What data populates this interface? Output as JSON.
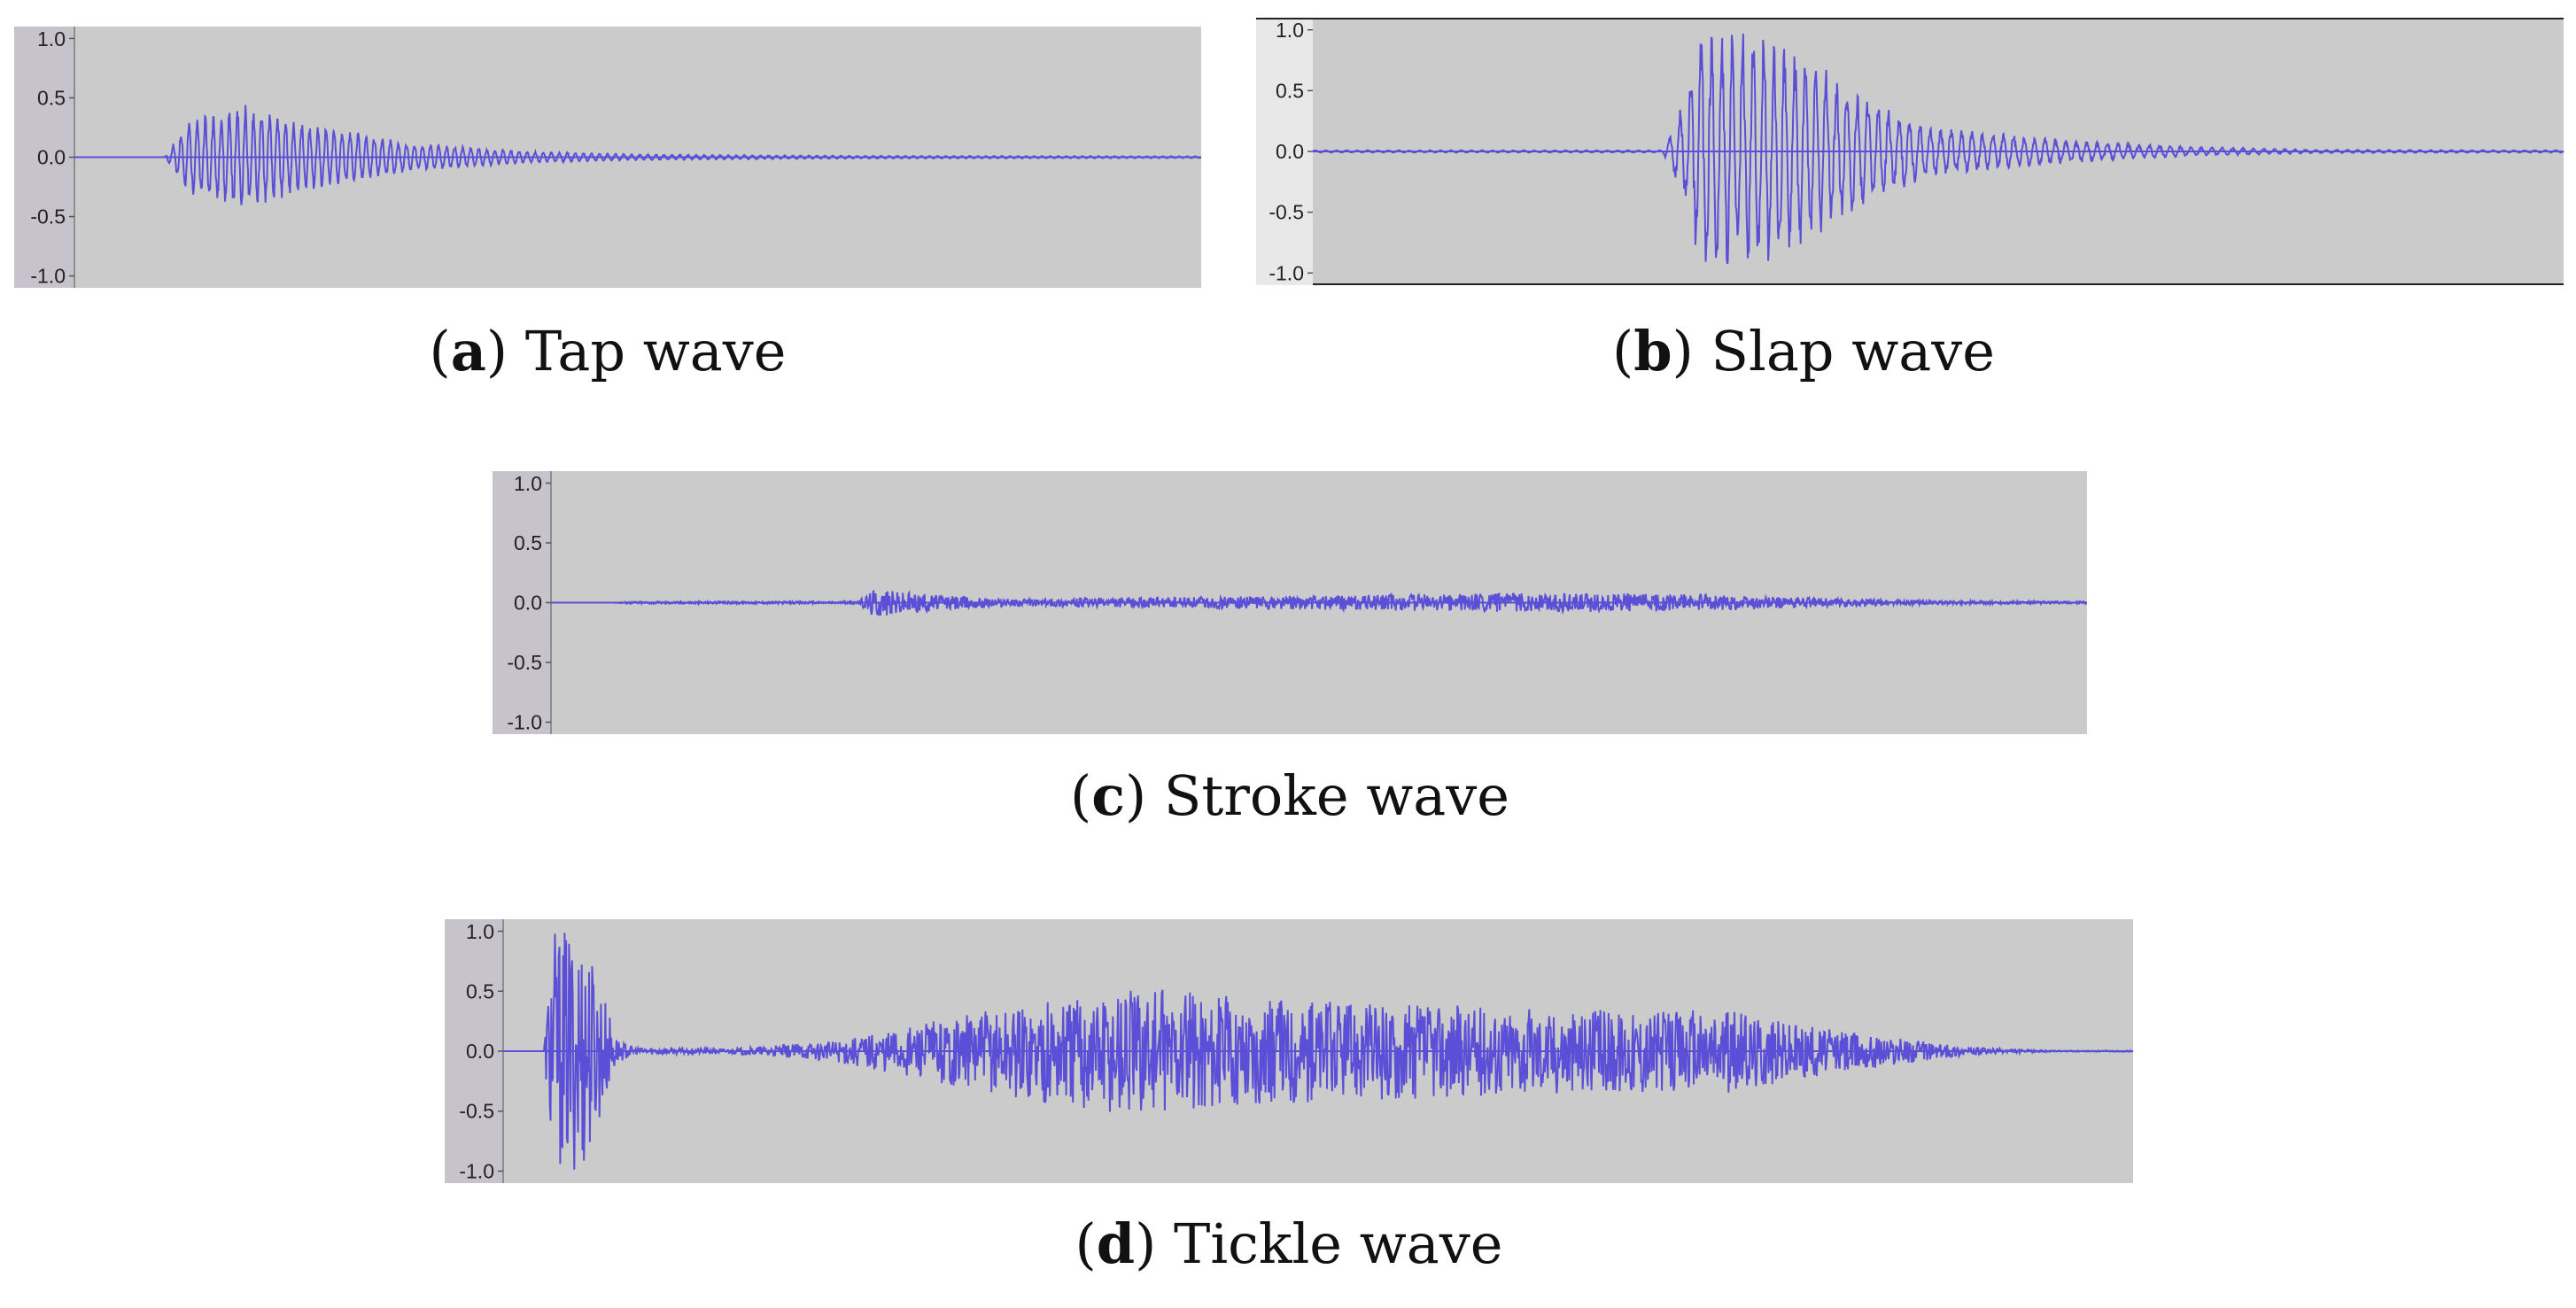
{
  "chart_data": [
    {
      "type": "line",
      "label": "a",
      "caption": "Tap wave",
      "ytick_labels": [
        "1.0",
        "0.5",
        "0.0",
        "-0.5",
        "-1.0"
      ],
      "ylim": [
        -1.1,
        1.1
      ],
      "xlim": [
        0,
        1
      ],
      "line_color": "#5a4fd6",
      "envelope": [
        [
          0.0,
          0
        ],
        [
          0.08,
          0
        ],
        [
          0.1,
          0.3
        ],
        [
          0.15,
          0.45
        ],
        [
          0.2,
          0.3
        ],
        [
          0.3,
          0.12
        ],
        [
          0.4,
          0.05
        ],
        [
          0.5,
          0.025
        ],
        [
          0.7,
          0.012
        ],
        [
          1.0,
          0.008
        ]
      ]
    },
    {
      "type": "line",
      "label": "b",
      "caption": "Slap wave",
      "ytick_labels": [
        "1.0",
        "0.5",
        "0.0",
        "-0.5",
        "-1.0"
      ],
      "ylim": [
        -1.1,
        1.1
      ],
      "xlim": [
        0,
        1
      ],
      "line_color": "#5a4fd6",
      "envelope": [
        [
          0.0,
          0.01
        ],
        [
          0.28,
          0.01
        ],
        [
          0.3,
          0.5
        ],
        [
          0.31,
          1.0
        ],
        [
          0.36,
          1.0
        ],
        [
          0.4,
          0.75
        ],
        [
          0.45,
          0.4
        ],
        [
          0.5,
          0.2
        ],
        [
          0.6,
          0.1
        ],
        [
          0.7,
          0.04
        ],
        [
          0.8,
          0.015
        ],
        [
          1.0,
          0.01
        ]
      ]
    },
    {
      "type": "line",
      "label": "c",
      "caption": "Stroke wave",
      "ytick_labels": [
        "1.0",
        "0.5",
        "0.0",
        "-0.5",
        "-1.0"
      ],
      "ylim": [
        -1.1,
        1.1
      ],
      "xlim": [
        0,
        1
      ],
      "line_color": "#5a4fd6",
      "envelope": [
        [
          0.0,
          0
        ],
        [
          0.04,
          0
        ],
        [
          0.05,
          0.01
        ],
        [
          0.2,
          0.01
        ],
        [
          0.21,
          0.12
        ],
        [
          0.25,
          0.07
        ],
        [
          0.3,
          0.03
        ],
        [
          0.5,
          0.06
        ],
        [
          0.65,
          0.08
        ],
        [
          0.75,
          0.07
        ],
        [
          0.82,
          0.04
        ],
        [
          0.9,
          0.015
        ],
        [
          1.0,
          0.01
        ]
      ]
    },
    {
      "type": "line",
      "label": "d",
      "caption": "Tickle wave",
      "ytick_labels": [
        "1.0",
        "0.5",
        "0.0",
        "-0.5",
        "-1.0"
      ],
      "ylim": [
        -1.1,
        1.1
      ],
      "xlim": [
        0,
        1
      ],
      "line_color": "#5a4fd6",
      "envelope": [
        [
          0.0,
          0
        ],
        [
          0.025,
          0
        ],
        [
          0.03,
          1.0
        ],
        [
          0.05,
          1.0
        ],
        [
          0.07,
          0.1
        ],
        [
          0.08,
          0.03
        ],
        [
          0.14,
          0.02
        ],
        [
          0.2,
          0.08
        ],
        [
          0.3,
          0.35
        ],
        [
          0.38,
          0.55
        ],
        [
          0.45,
          0.45
        ],
        [
          0.55,
          0.4
        ],
        [
          0.65,
          0.35
        ],
        [
          0.75,
          0.35
        ],
        [
          0.82,
          0.18
        ],
        [
          0.9,
          0.03
        ],
        [
          0.95,
          0.005
        ],
        [
          1.0,
          0.005
        ]
      ]
    }
  ]
}
